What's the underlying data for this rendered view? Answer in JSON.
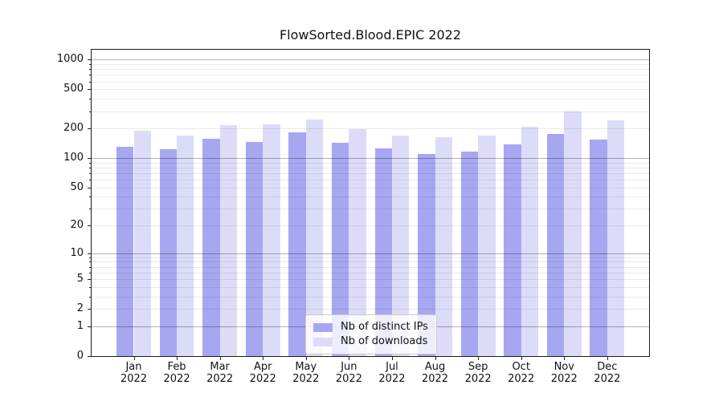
{
  "chart_data": {
    "type": "bar",
    "title": "FlowSorted.Blood.EPIC 2022",
    "x_axis": {
      "months": [
        "Jan",
        "Feb",
        "Mar",
        "Apr",
        "May",
        "Jun",
        "Jul",
        "Aug",
        "Sep",
        "Oct",
        "Nov",
        "Dec"
      ],
      "year": "2022"
    },
    "y_axis": {
      "scale": "log(value+1)",
      "tick_labels": [
        "0",
        "1",
        "2",
        "5",
        "10",
        "20",
        "50",
        "100",
        "200",
        "500",
        "1000"
      ],
      "tick_values": [
        0,
        1,
        2,
        5,
        10,
        20,
        50,
        100,
        200,
        500,
        1000
      ],
      "ylim": [
        0,
        1280
      ],
      "grid": true
    },
    "series": [
      {
        "name": "Nb of distinct IPs",
        "color": "#a7a7f1",
        "values": [
          131,
          124,
          157,
          145,
          182,
          143,
          125,
          111,
          116,
          138,
          177,
          154
        ]
      },
      {
        "name": "Nb of downloads",
        "color": "#dcdcf9",
        "values": [
          189,
          171,
          218,
          221,
          248,
          196,
          170,
          162,
          171,
          210,
          298,
          243
        ]
      }
    ],
    "legend_position": "lower center"
  },
  "colors": {
    "grid_major": "rgba(0,0,0,0.30)",
    "grid_minor": "rgba(0,0,0,0.085)",
    "spine": "#1a1a1a",
    "background": "#ffffff"
  }
}
